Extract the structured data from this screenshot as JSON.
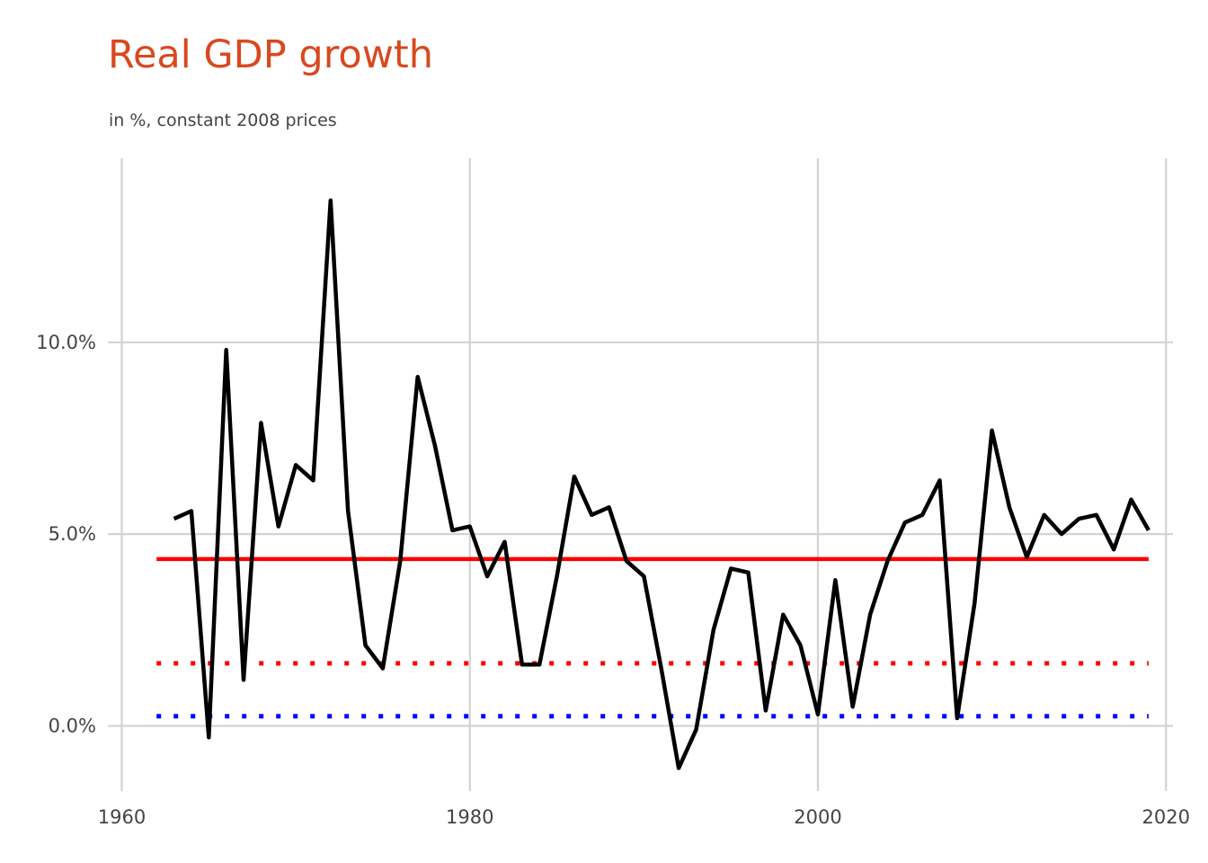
{
  "chart_data": {
    "type": "line",
    "title": "Real GDP growth",
    "subtitle": "in %, constant 2008 prices",
    "xlabel": "",
    "ylabel": "",
    "xlim": [
      1959.2,
      2020.4
    ],
    "ylim": [
      -1.7,
      14.8
    ],
    "x_ticks": [
      1960,
      1980,
      2000,
      2020
    ],
    "x_tick_labels": [
      "1960",
      "1980",
      "2000",
      "2020"
    ],
    "y_ticks": [
      0,
      5,
      10
    ],
    "y_tick_labels": [
      "0.0%",
      "5.0%",
      "10.0%"
    ],
    "grid": true,
    "legend": "none",
    "series": [
      {
        "color": "#000000",
        "style": "solid",
        "x": [
          1963,
          1964,
          1965,
          1966,
          1967,
          1968,
          1969,
          1970,
          1971,
          1972,
          1973,
          1974,
          1975,
          1976,
          1977,
          1978,
          1979,
          1980,
          1981,
          1982,
          1983,
          1984,
          1985,
          1986,
          1987,
          1988,
          1989,
          1990,
          1991,
          1992,
          1993,
          1994,
          1995,
          1996,
          1997,
          1998,
          1999,
          2000,
          2001,
          2002,
          2003,
          2004,
          2005,
          2006,
          2007,
          2008,
          2009,
          2010,
          2011,
          2012,
          2013,
          2014,
          2015,
          2016,
          2017,
          2018,
          2019
        ],
        "values": [
          5.4,
          5.6,
          -0.3,
          9.8,
          1.2,
          7.9,
          5.2,
          6.8,
          6.4,
          13.7,
          5.6,
          2.1,
          1.5,
          4.3,
          9.1,
          7.3,
          5.1,
          5.2,
          3.9,
          4.8,
          1.6,
          1.6,
          3.9,
          6.5,
          5.5,
          5.7,
          4.3,
          3.9,
          1.5,
          -1.1,
          -0.1,
          2.5,
          4.1,
          4.0,
          0.4,
          2.9,
          2.1,
          0.3,
          3.8,
          0.5,
          2.9,
          4.3,
          5.3,
          5.5,
          6.4,
          0.2,
          3.2,
          7.7,
          5.7,
          4.4,
          5.5,
          5.0,
          5.4,
          5.5,
          4.6,
          5.9,
          5.1
        ]
      },
      {
        "color": "#ff0000",
        "style": "solid",
        "x": [
          1962,
          2019
        ],
        "values": [
          4.35,
          4.35
        ]
      },
      {
        "color": "#ff0000",
        "style": "dotted",
        "x": [
          1962,
          2019
        ],
        "values": [
          1.63,
          1.63
        ]
      },
      {
        "color": "#0000ff",
        "style": "dotted",
        "x": [
          1962,
          2019
        ],
        "values": [
          0.25,
          0.25
        ]
      }
    ]
  }
}
